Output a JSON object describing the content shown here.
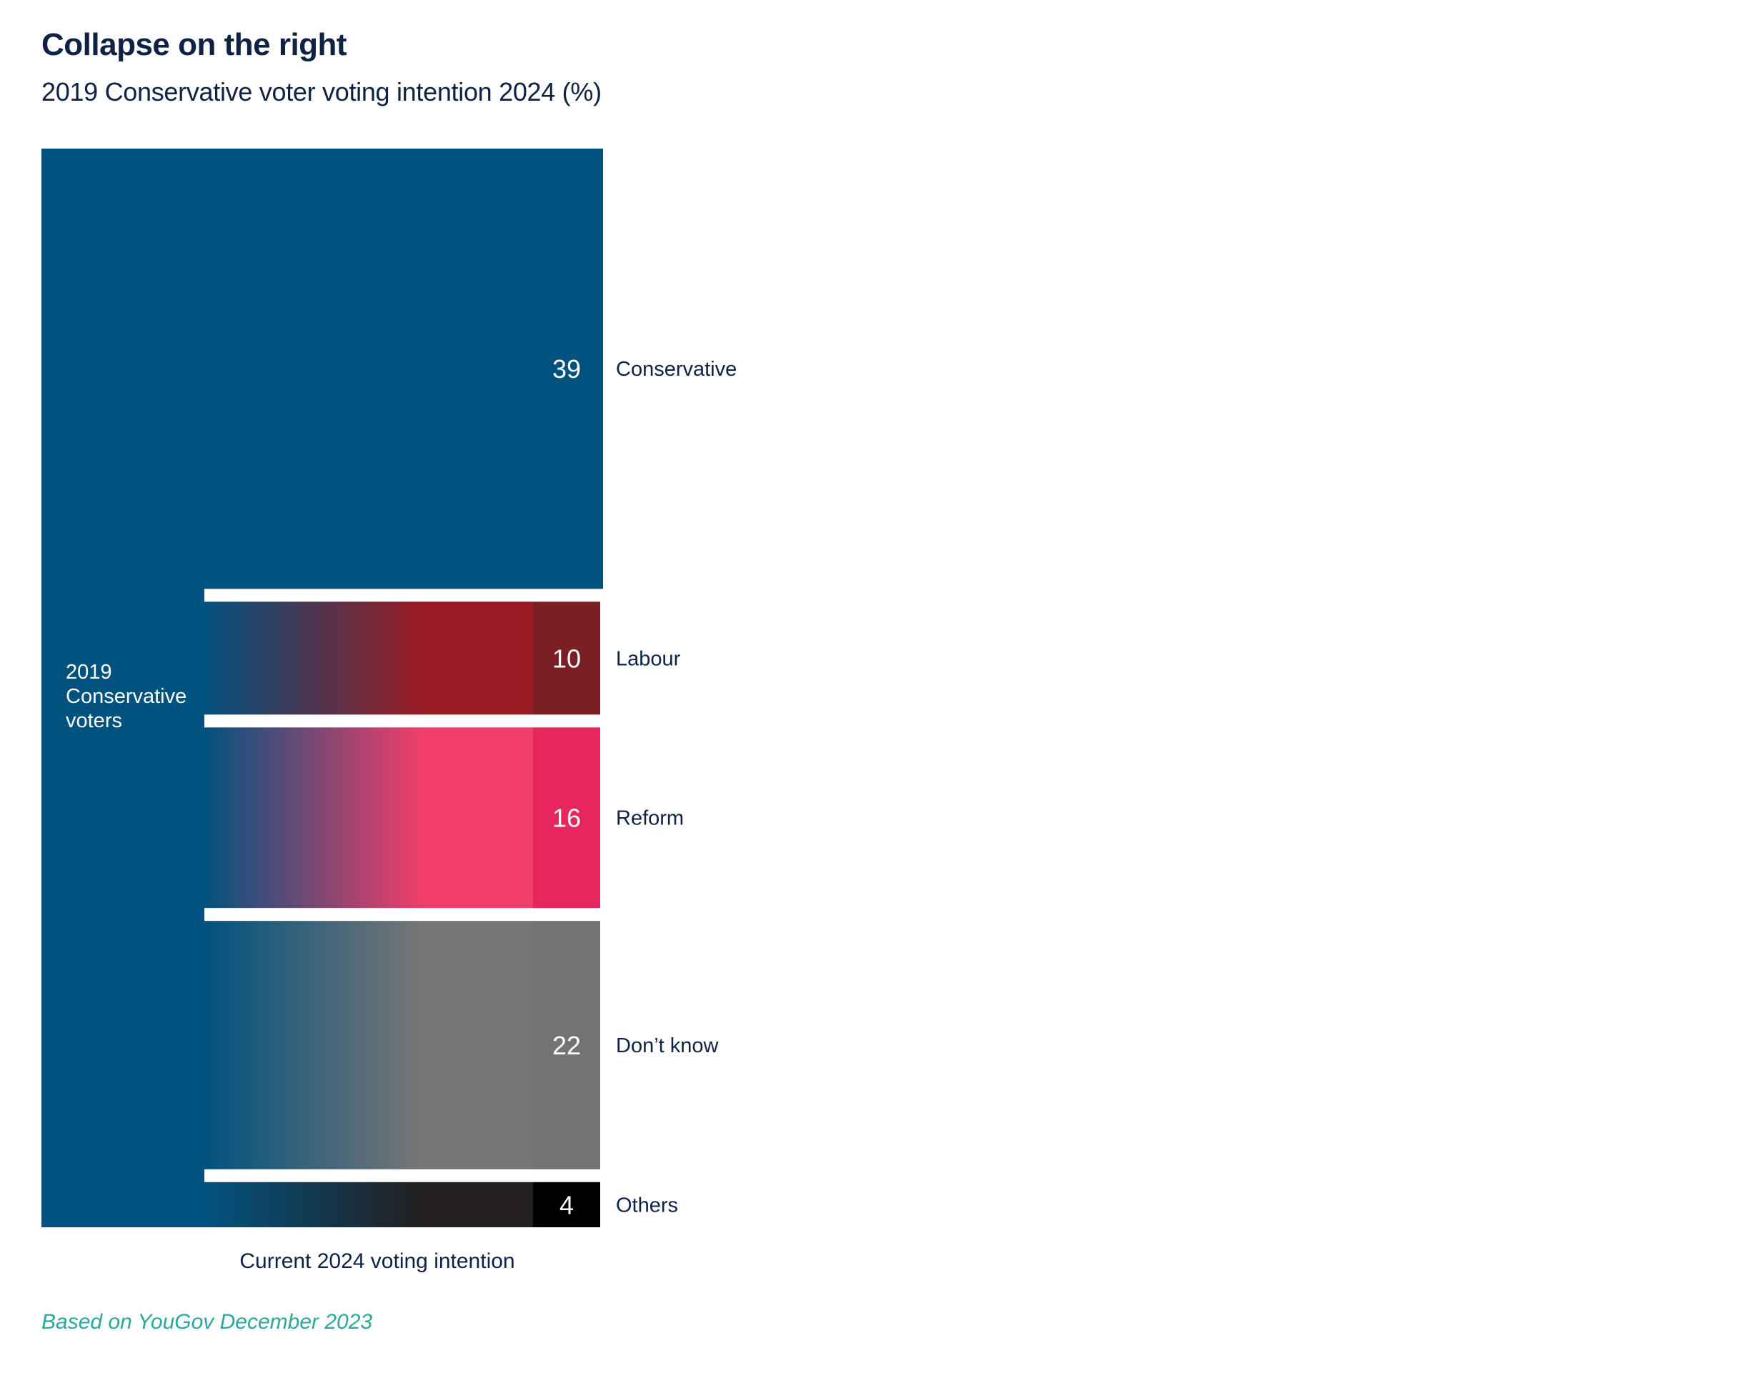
{
  "title": "Collapse on the right",
  "subtitle": "2019 Conservative voter voting intention 2024 (%)",
  "source": "Based on YouGov December 2023",
  "colors": {
    "source_bar": "#02527f",
    "text": "#0f2244",
    "source_text": "#2aa99b"
  },
  "chart_data": {
    "type": "bar",
    "source_label": [
      "2019",
      "Conservative",
      "voters"
    ],
    "xlabel": "Current 2024 voting intention",
    "categories": [
      "Conservative",
      "Labour",
      "Reform",
      "Don’t know",
      "Others"
    ],
    "values": [
      39,
      10,
      16,
      22,
      4
    ],
    "colors": [
      "#02527f",
      "#7a1f24",
      "#e8265e",
      "#737373",
      "#000000"
    ],
    "mid_colors": [
      "#02527f",
      "#981b24",
      "#ef3e69",
      "#767676",
      "#231f20"
    ]
  }
}
